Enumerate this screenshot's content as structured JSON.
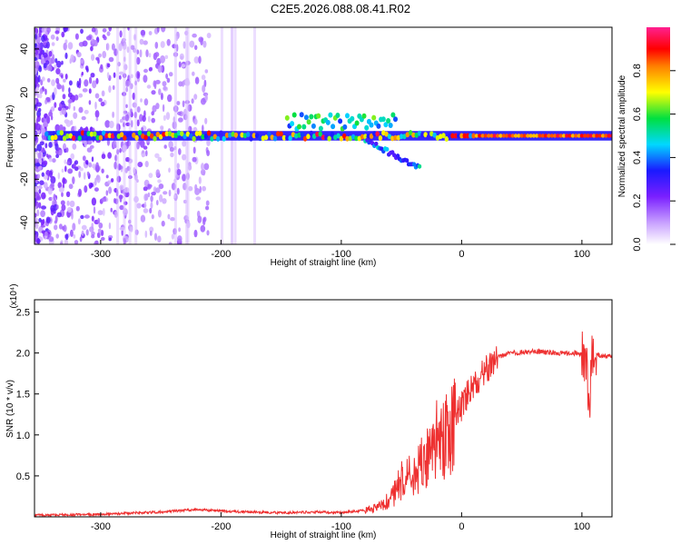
{
  "figure": {
    "title": "C2E5.2026.088.08.41.R02",
    "colors": {
      "snr_line": "#ee3030",
      "axis": "#000000",
      "background": "#ffffff"
    }
  },
  "chart_data": [
    {
      "type": "heatmap",
      "title": "C2E5.2026.088.08.41.R02",
      "xlabel": "Height of straight line (km)",
      "ylabel": "Frequency (Hz)",
      "xlim": [
        -355,
        125
      ],
      "ylim": [
        -50,
        50
      ],
      "xticks": [
        -300,
        -200,
        -100,
        0,
        100
      ],
      "xtick_labels": [
        "-300",
        "-200",
        "-100",
        "0",
        "100"
      ],
      "yticks": [
        -40,
        -20,
        0,
        20,
        40
      ],
      "ytick_labels": [
        "-40",
        "-20",
        "0",
        "20",
        "40"
      ],
      "colorbar": {
        "label": "Normalized spectral amplitude",
        "range": [
          0,
          1
        ],
        "ticks": [
          0.0,
          0.2,
          0.4,
          0.6,
          0.8
        ],
        "tick_labels": [
          "0.0",
          "0.2",
          "0.4",
          "0.6",
          "0.8"
        ],
        "colormap": "rainbow (white-violet-blue-cyan-green-yellow-red-magenta)"
      },
      "features": [
        {
          "name": "noise region",
          "x_range": [
            -355,
            -210
          ],
          "freq_range": [
            -50,
            50
          ],
          "amplitude": 0.05
        },
        {
          "name": "main carrier",
          "x_range": [
            -345,
            125
          ],
          "center_freq": 0,
          "amplitude_range": [
            0.3,
            0.95
          ]
        },
        {
          "name": "upper multipath",
          "x_range": [
            -145,
            -55
          ],
          "freq_range": [
            3,
            10
          ],
          "amplitude": 0.35
        },
        {
          "name": "descending branch",
          "x_range": [
            -80,
            -35
          ],
          "freq_start": -2,
          "freq_end": -15,
          "amplitude": 0.25
        }
      ]
    },
    {
      "type": "line",
      "xlabel": "Height of straight line (km)",
      "ylabel": "SNR (10 * v/v)",
      "yscale_label": "(x10⁴)",
      "xlim": [
        -355,
        125
      ],
      "ylim": [
        0,
        2.65
      ],
      "xticks": [
        -300,
        -200,
        -100,
        0,
        100
      ],
      "xtick_labels": [
        "-300",
        "-200",
        "-100",
        "0",
        "100"
      ],
      "yticks": [
        0.5,
        1.0,
        1.5,
        2.0,
        2.5
      ],
      "ytick_labels": [
        "0.5",
        "1.0",
        "1.5",
        "2.0",
        "2.5"
      ],
      "series": [
        {
          "name": "SNR",
          "color": "#ee3030",
          "x": [
            -355,
            -300,
            -250,
            -220,
            -200,
            -180,
            -150,
            -120,
            -100,
            -80,
            -70,
            -60,
            -55,
            -50,
            -45,
            -40,
            -35,
            -30,
            -25,
            -20,
            -15,
            -10,
            -5,
            0,
            5,
            10,
            15,
            20,
            25,
            30,
            40,
            60,
            80,
            95,
            100,
            104,
            106,
            108,
            110,
            115,
            125
          ],
          "values": [
            0.02,
            0.03,
            0.06,
            0.09,
            0.07,
            0.06,
            0.05,
            0.06,
            0.05,
            0.08,
            0.12,
            0.2,
            0.3,
            0.45,
            0.55,
            0.5,
            0.6,
            0.7,
            0.8,
            0.95,
            0.9,
            1.05,
            1.2,
            1.35,
            1.5,
            1.6,
            1.7,
            1.8,
            1.85,
            1.95,
            2.0,
            2.02,
            2.0,
            2.0,
            1.98,
            1.9,
            1.3,
            1.95,
            2.0,
            1.97,
            1.95
          ]
        }
      ]
    }
  ]
}
